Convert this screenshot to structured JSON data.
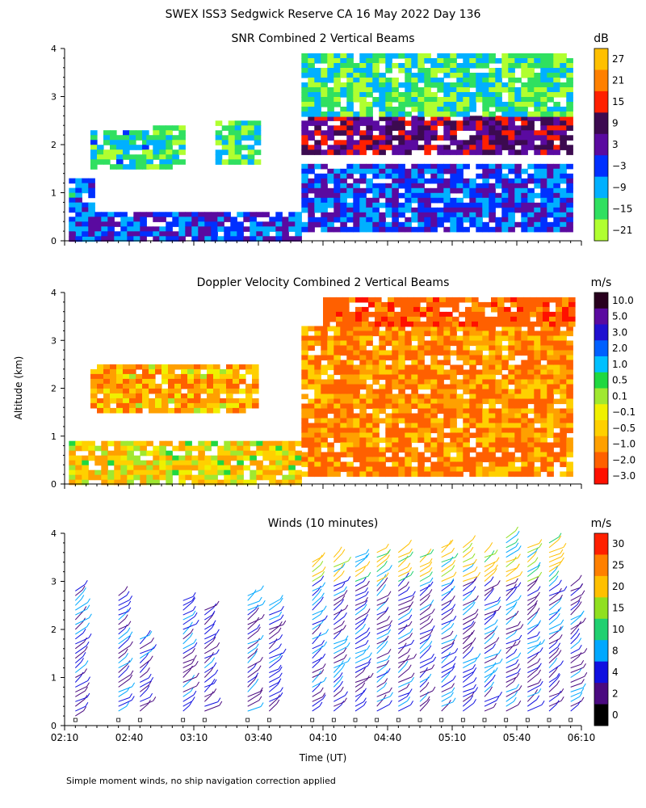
{
  "figure": {
    "title": "SWEX ISS3 Sedgwick Reserve CA  16 May 2022 Day 136",
    "y_axis_label": "Altitude (km)",
    "x_axis_label": "Time (UT)",
    "footnote": "Simple moment winds, no ship navigation correction applied"
  },
  "chart_data": [
    {
      "type": "heatmap",
      "title": "SNR Combined 2 Vertical Beams",
      "colorbar_unit": "dB",
      "colorbar_labels": [
        "27",
        "21",
        "15",
        "9",
        "3",
        "−3",
        "−9",
        "−15",
        "−21"
      ],
      "colorbar_colors": [
        "#ffc000",
        "#ff8000",
        "#ff2000",
        "#3c0a50",
        "#5a0aa0",
        "#0030ff",
        "#00b0ff",
        "#30e060",
        "#b0ff30"
      ],
      "x_ticks": [
        "02:10",
        "02:40",
        "03:10",
        "03:40",
        "04:10",
        "04:40",
        "05:10",
        "05:40",
        "06:10"
      ],
      "y_ticks": [
        "0",
        "1",
        "2",
        "3",
        "4"
      ],
      "ylim": [
        0,
        4
      ],
      "regions": [
        {
          "t0": "02:12",
          "t1": "02:22",
          "alt": [
            0.0,
            1.3
          ],
          "snr": -6
        },
        {
          "t0": "02:22",
          "t1": "02:48",
          "alt": [
            1.5,
            2.3
          ],
          "snr": -12
        },
        {
          "t0": "02:48",
          "t1": "03:05",
          "alt": [
            1.5,
            2.4
          ],
          "snr": -14
        },
        {
          "t0": "03:20",
          "t1": "03:40",
          "alt": [
            1.6,
            2.5
          ],
          "snr": -14
        },
        {
          "t0": "02:12",
          "t1": "04:00",
          "alt": [
            0.0,
            0.6
          ],
          "snr": -2
        },
        {
          "t0": "04:00",
          "t1": "06:05",
          "alt": [
            1.8,
            2.6
          ],
          "snr": 8
        },
        {
          "t0": "04:00",
          "t1": "06:05",
          "alt": [
            0.2,
            1.6
          ],
          "snr": -3
        },
        {
          "t0": "04:00",
          "t1": "06:05",
          "alt": [
            2.6,
            3.9
          ],
          "snr": -15
        }
      ]
    },
    {
      "type": "heatmap",
      "title": "Doppler Velocity Combined 2 Vertical Beams",
      "colorbar_unit": "m/s",
      "colorbar_labels": [
        "10.0",
        "5.0",
        "3.0",
        "2.0",
        "1.0",
        "0.5",
        "0.1",
        "−0.1",
        "−0.5",
        "−1.0",
        "−2.0",
        "−3.0"
      ],
      "colorbar_colors": [
        "#28001e",
        "#5a0aa0",
        "#2010d0",
        "#0060ff",
        "#00c0ff",
        "#20d840",
        "#a0e830",
        "#f0f000",
        "#ffd000",
        "#ffa000",
        "#ff6000",
        "#ff1000"
      ],
      "x_ticks": [
        "02:10",
        "02:40",
        "03:10",
        "03:40",
        "04:10",
        "04:40",
        "05:10",
        "05:40",
        "06:10"
      ],
      "y_ticks": [
        "0",
        "1",
        "2",
        "3",
        "4"
      ],
      "ylim": [
        0,
        4
      ],
      "regions": [
        {
          "t0": "02:12",
          "t1": "04:00",
          "alt": [
            0.0,
            0.9
          ],
          "w": -0.2
        },
        {
          "t0": "02:22",
          "t1": "03:40",
          "alt": [
            1.5,
            2.5
          ],
          "w": -0.6
        },
        {
          "t0": "04:00",
          "t1": "06:05",
          "alt": [
            0.2,
            3.3
          ],
          "w": -1.0
        },
        {
          "t0": "04:10",
          "t1": "06:05",
          "alt": [
            3.3,
            3.9
          ],
          "w": -1.5
        }
      ]
    },
    {
      "type": "wind_barbs",
      "title": "Winds (10 minutes)",
      "colorbar_unit": "m/s",
      "colorbar_labels": [
        "30",
        "25",
        "20",
        "15",
        "10",
        "8",
        "4",
        "2",
        "0"
      ],
      "colorbar_colors": [
        "#ff2000",
        "#ff8000",
        "#ffc000",
        "#90e020",
        "#20d070",
        "#00a8ff",
        "#1010e0",
        "#4a0a80",
        "#000000"
      ],
      "x_ticks": [
        "02:10",
        "02:40",
        "03:10",
        "03:40",
        "04:10",
        "04:40",
        "05:10",
        "05:40",
        "06:10"
      ],
      "y_ticks": [
        "0",
        "1",
        "2",
        "3",
        "4"
      ],
      "ylim": [
        0,
        4
      ],
      "profiles": [
        {
          "t": "02:15",
          "alt": [
            0.2,
            2.9
          ]
        },
        {
          "t": "02:35",
          "alt": [
            0.3,
            2.8
          ]
        },
        {
          "t": "02:45",
          "alt": [
            0.3,
            1.9
          ]
        },
        {
          "t": "03:05",
          "alt": [
            0.3,
            2.7
          ]
        },
        {
          "t": "03:15",
          "alt": [
            0.3,
            2.5
          ]
        },
        {
          "t": "03:35",
          "alt": [
            0.3,
            2.8
          ]
        },
        {
          "t": "03:45",
          "alt": [
            0.3,
            2.6
          ]
        },
        {
          "t": "04:05",
          "alt": [
            0.3,
            3.5
          ]
        },
        {
          "t": "04:15",
          "alt": [
            0.3,
            3.6
          ]
        },
        {
          "t": "04:25",
          "alt": [
            0.3,
            3.6
          ]
        },
        {
          "t": "04:35",
          "alt": [
            0.3,
            3.7
          ]
        },
        {
          "t": "04:45",
          "alt": [
            0.3,
            3.7
          ]
        },
        {
          "t": "04:55",
          "alt": [
            0.3,
            3.6
          ]
        },
        {
          "t": "05:05",
          "alt": [
            0.3,
            3.8
          ]
        },
        {
          "t": "05:15",
          "alt": [
            0.3,
            3.8
          ]
        },
        {
          "t": "05:25",
          "alt": [
            0.3,
            3.7
          ]
        },
        {
          "t": "05:35",
          "alt": [
            0.3,
            4.0
          ]
        },
        {
          "t": "05:45",
          "alt": [
            0.3,
            3.8
          ]
        },
        {
          "t": "05:55",
          "alt": [
            0.3,
            3.9
          ]
        },
        {
          "t": "06:05",
          "alt": [
            0.3,
            3.0
          ]
        }
      ]
    }
  ]
}
